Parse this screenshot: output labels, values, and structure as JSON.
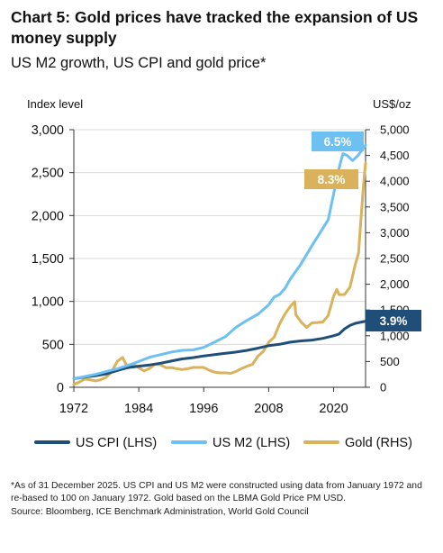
{
  "title": "Chart 5: Gold prices have tracked the expansion of US money supply",
  "subtitle": "US M2 growth, US CPI and gold price*",
  "footnote": "*As of 31 December 2025. US CPI and US M2 were constructed using data from January 1972 and re-based to 100 on January 1972. Gold based on the LBMA Gold Price PM USD.",
  "source": "Source: Bloomberg, ICE Benchmark Administration, World Gold Council",
  "chart_data": {
    "type": "line",
    "left_axis": {
      "label": "Index level",
      "range": [
        0,
        3000
      ],
      "ticks": [
        0,
        500,
        1000,
        1500,
        2000,
        2500,
        3000
      ],
      "tick_labels": [
        "0",
        "500",
        "1,000",
        "1,500",
        "2,000",
        "2,500",
        "3,000"
      ]
    },
    "right_axis": {
      "label": "US$/oz",
      "range": [
        0,
        5000
      ],
      "ticks": [
        0,
        500,
        1000,
        1500,
        2000,
        2500,
        3000,
        3500,
        4000,
        4500,
        5000
      ],
      "tick_labels": [
        "0",
        "500",
        "1,000",
        "1,500",
        "2,000",
        "2,500",
        "3,000",
        "3,500",
        "4,000",
        "4,500",
        "5,000"
      ]
    },
    "x_axis": {
      "range": [
        1972,
        2025.9
      ],
      "ticks": [
        1972,
        1984,
        1996,
        2008,
        2020
      ],
      "tick_labels": [
        "1972",
        "1984",
        "1996",
        "2008",
        "2020"
      ]
    },
    "grid": "horizontal",
    "legend_placement": "bottom",
    "series": [
      {
        "name": "US CPI (LHS)",
        "axis": "left",
        "color": "#1f4e79",
        "end_label": "3.9%",
        "points": [
          [
            1972,
            100
          ],
          [
            1974,
            120
          ],
          [
            1976,
            135
          ],
          [
            1978,
            155
          ],
          [
            1980,
            195
          ],
          [
            1982,
            230
          ],
          [
            1984,
            245
          ],
          [
            1986,
            260
          ],
          [
            1988,
            280
          ],
          [
            1990,
            305
          ],
          [
            1992,
            330
          ],
          [
            1994,
            345
          ],
          [
            1996,
            365
          ],
          [
            1998,
            380
          ],
          [
            2000,
            395
          ],
          [
            2002,
            410
          ],
          [
            2004,
            430
          ],
          [
            2006,
            455
          ],
          [
            2008,
            485
          ],
          [
            2010,
            500
          ],
          [
            2012,
            525
          ],
          [
            2014,
            540
          ],
          [
            2016,
            550
          ],
          [
            2018,
            570
          ],
          [
            2020,
            600
          ],
          [
            2021,
            620
          ],
          [
            2022,
            680
          ],
          [
            2023,
            720
          ],
          [
            2024,
            745
          ],
          [
            2025.9,
            770
          ]
        ]
      },
      {
        "name": "US M2 (LHS)",
        "axis": "left",
        "color": "#6cc0f2",
        "end_label": "6.5%",
        "points": [
          [
            1972,
            100
          ],
          [
            1974,
            125
          ],
          [
            1976,
            150
          ],
          [
            1978,
            185
          ],
          [
            1980,
            215
          ],
          [
            1982,
            255
          ],
          [
            1984,
            300
          ],
          [
            1986,
            350
          ],
          [
            1988,
            380
          ],
          [
            1990,
            410
          ],
          [
            1992,
            430
          ],
          [
            1994,
            435
          ],
          [
            1996,
            465
          ],
          [
            1998,
            525
          ],
          [
            2000,
            590
          ],
          [
            2002,
            700
          ],
          [
            2004,
            780
          ],
          [
            2006,
            850
          ],
          [
            2008,
            960
          ],
          [
            2009,
            1050
          ],
          [
            2010,
            1080
          ],
          [
            2011,
            1150
          ],
          [
            2012,
            1260
          ],
          [
            2014,
            1440
          ],
          [
            2016,
            1650
          ],
          [
            2018,
            1850
          ],
          [
            2019,
            1950
          ],
          [
            2020,
            2250
          ],
          [
            2021,
            2550
          ],
          [
            2021.7,
            2720
          ],
          [
            2022.5,
            2700
          ],
          [
            2023.5,
            2640
          ],
          [
            2024.5,
            2700
          ],
          [
            2025.9,
            2820
          ]
        ]
      },
      {
        "name": "Gold (RHS)",
        "axis": "right",
        "color": "#d9b25b",
        "end_label": "8.3%",
        "points": [
          [
            1972,
            58
          ],
          [
            1973,
            100
          ],
          [
            1974,
            160
          ],
          [
            1975,
            145
          ],
          [
            1976,
            125
          ],
          [
            1977,
            148
          ],
          [
            1978,
            195
          ],
          [
            1979,
            300
          ],
          [
            1980,
            500
          ],
          [
            1981,
            580
          ],
          [
            1982,
            375
          ],
          [
            1983,
            450
          ],
          [
            1984,
            380
          ],
          [
            1985,
            317
          ],
          [
            1986,
            368
          ],
          [
            1987,
            447
          ],
          [
            1988,
            437
          ],
          [
            1989,
            381
          ],
          [
            1990,
            383
          ],
          [
            1991,
            362
          ],
          [
            1992,
            344
          ],
          [
            1993,
            360
          ],
          [
            1994,
            384
          ],
          [
            1995,
            384
          ],
          [
            1996,
            387
          ],
          [
            1997,
            331
          ],
          [
            1998,
            294
          ],
          [
            1999,
            279
          ],
          [
            2000,
            279
          ],
          [
            2001,
            271
          ],
          [
            2002,
            310
          ],
          [
            2003,
            363
          ],
          [
            2004,
            409
          ],
          [
            2005,
            445
          ],
          [
            2006,
            604
          ],
          [
            2007,
            695
          ],
          [
            2008,
            872
          ],
          [
            2009,
            972
          ],
          [
            2010,
            1225
          ],
          [
            2011,
            1420
          ],
          [
            2012,
            1570
          ],
          [
            2012.8,
            1660
          ],
          [
            2013,
            1411
          ],
          [
            2014,
            1266
          ],
          [
            2015,
            1160
          ],
          [
            2016,
            1250
          ],
          [
            2017,
            1257
          ],
          [
            2018,
            1268
          ],
          [
            2019,
            1393
          ],
          [
            2020,
            1770
          ],
          [
            2020.6,
            1900
          ],
          [
            2021,
            1799
          ],
          [
            2022,
            1800
          ],
          [
            2023,
            1940
          ],
          [
            2024,
            2386
          ],
          [
            2024.6,
            2600
          ],
          [
            2025,
            3200
          ],
          [
            2025.5,
            3900
          ],
          [
            2025.9,
            4350
          ]
        ]
      }
    ]
  }
}
